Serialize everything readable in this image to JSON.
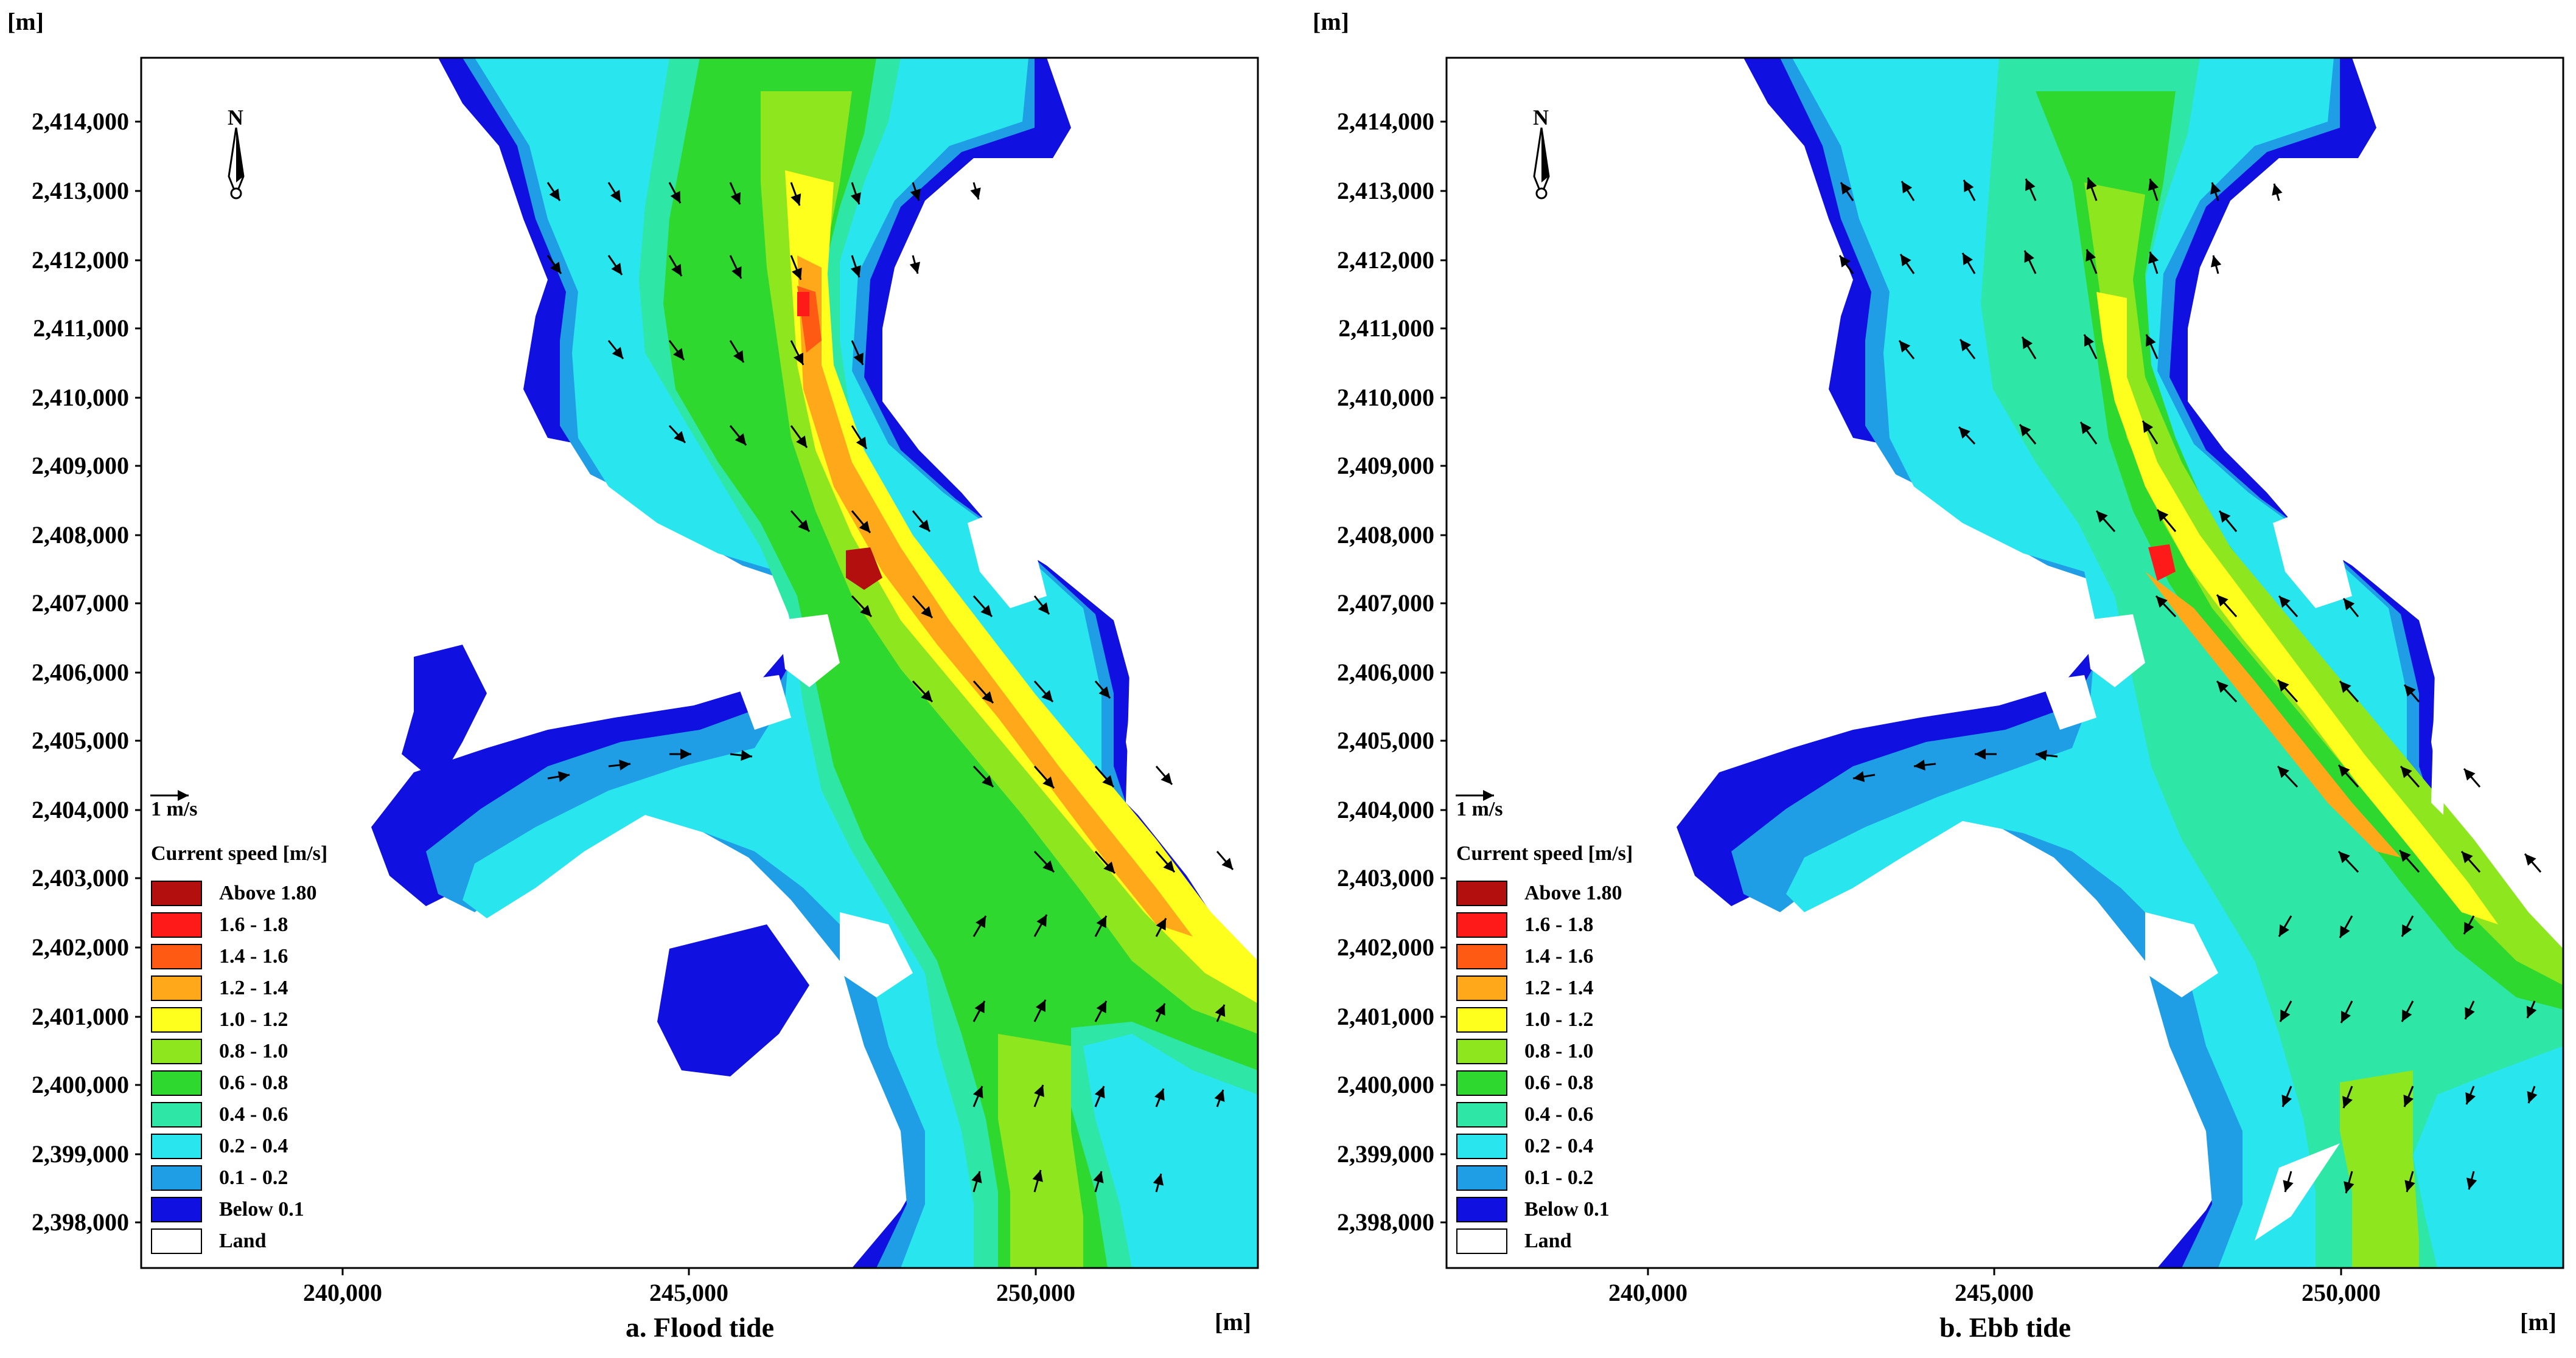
{
  "panels": [
    {
      "caption": "a. Flood tide",
      "y_unit": "[m]",
      "x_unit": "[m]",
      "north_label": "N",
      "scale_label": "1 m/s",
      "legend_title": "Current speed [m/s]"
    },
    {
      "caption": "b. Ebb tide",
      "y_unit": "[m]",
      "x_unit": "[m]",
      "north_label": "N",
      "scale_label": "1 m/s",
      "legend_title": "Current speed [m/s]"
    }
  ],
  "y_ticks": [
    "2,414,000",
    "2,413,000",
    "2,412,000",
    "2,411,000",
    "2,410,000",
    "2,409,000",
    "2,408,000",
    "2,407,000",
    "2,406,000",
    "2,405,000",
    "2,404,000",
    "2,403,000",
    "2,402,000",
    "2,401,000",
    "2,400,000",
    "2,399,000",
    "2,398,000"
  ],
  "x_ticks": [
    "240,000",
    "245,000",
    "250,000"
  ],
  "legend": [
    {
      "label": "Above 1.80",
      "color": "#b40f0f"
    },
    {
      "label": "1.6 - 1.8",
      "color": "#ff1a1a"
    },
    {
      "label": "1.4 - 1.6",
      "color": "#ff5a14"
    },
    {
      "label": "1.2 - 1.4",
      "color": "#ffa91a"
    },
    {
      "label": "1.0 - 1.2",
      "color": "#ffff1e"
    },
    {
      "label": "0.8 - 1.0",
      "color": "#8ee61e"
    },
    {
      "label": "0.6 - 0.8",
      "color": "#2fd82f"
    },
    {
      "label": "0.4 - 0.6",
      "color": "#2ee6a6"
    },
    {
      "label": "0.2 - 0.4",
      "color": "#29e6ee"
    },
    {
      "label": "0.1 - 0.2",
      "color": "#1f9ee6"
    },
    {
      "label": "Below 0.1",
      "color": "#1010e0"
    },
    {
      "label": "Land",
      "color": "#ffffff"
    }
  ]
}
